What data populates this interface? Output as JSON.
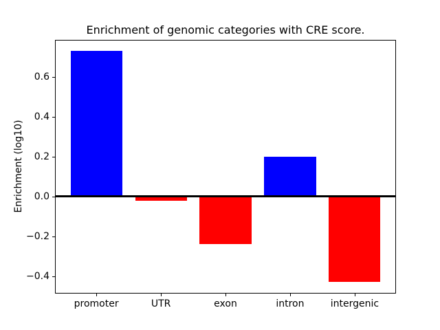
{
  "chart_data": {
    "type": "bar",
    "title": "Enrichment of genomic categories with CRE score.",
    "xlabel": "",
    "ylabel": "Enrichment (log10)",
    "categories": [
      "promoter",
      "UTR",
      "exon",
      "intron",
      "intergenic"
    ],
    "values": [
      0.73,
      -0.02,
      -0.24,
      0.2,
      -0.43
    ],
    "bar_colors": [
      "#0000ff",
      "#ff0000",
      "#ff0000",
      "#0000ff",
      "#ff0000"
    ],
    "positive_color": "#0000ff",
    "negative_color": "#ff0000",
    "bar_width": 0.8,
    "xlim": [
      -0.64,
      4.64
    ],
    "ylim": [
      -0.488,
      0.788
    ],
    "yticks": [
      {
        "value": -0.4,
        "label": "−0.4"
      },
      {
        "value": -0.2,
        "label": "−0.2"
      },
      {
        "value": 0.0,
        "label": "0.0"
      },
      {
        "value": 0.2,
        "label": "0.2"
      },
      {
        "value": 0.4,
        "label": "0.4"
      },
      {
        "value": 0.6,
        "label": "0.6"
      }
    ],
    "zero_line": true,
    "grid": false,
    "legend": null,
    "background_color": "#ffffff",
    "axes_color": "#000000"
  }
}
